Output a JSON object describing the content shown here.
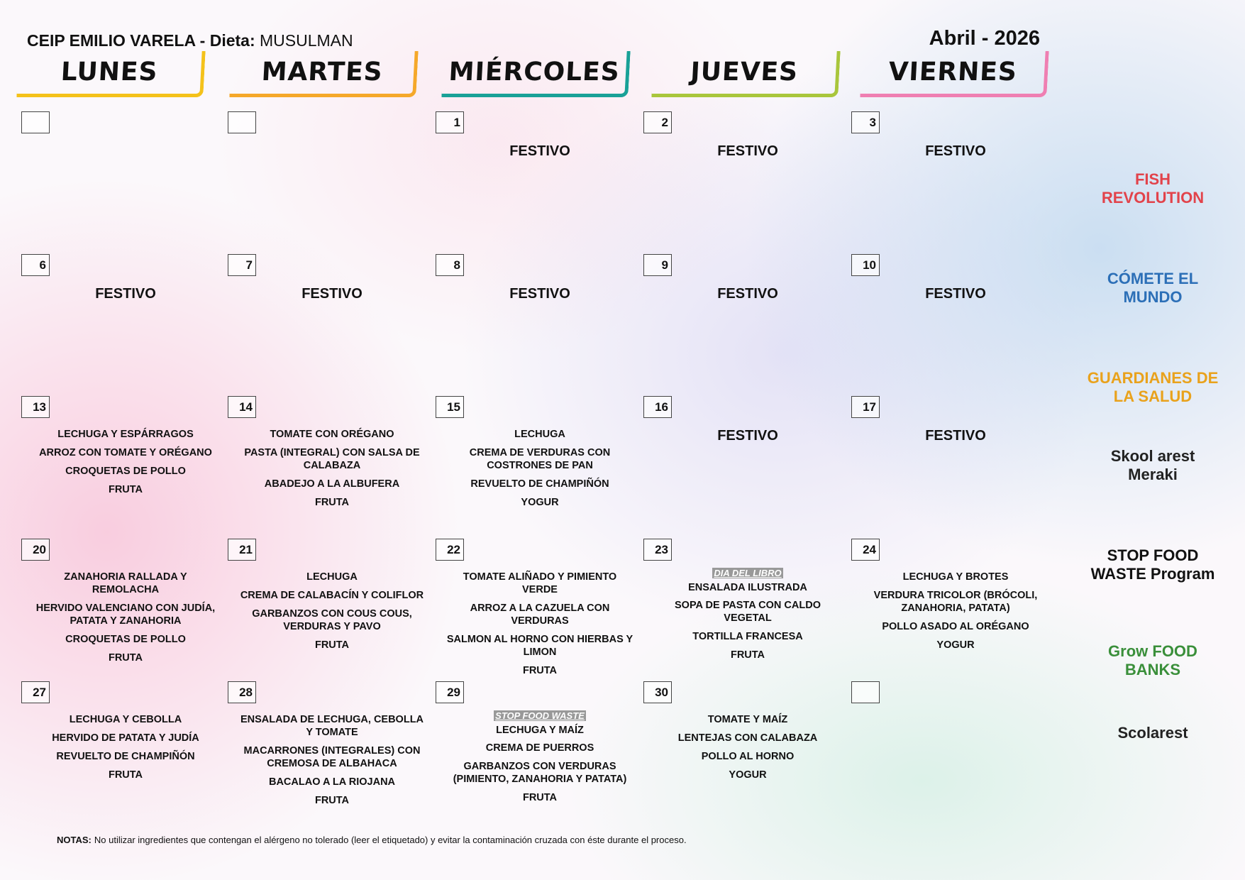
{
  "header": {
    "school": "CEIP EMILIO VARELA",
    "diet_label": "- Dieta:",
    "diet": "MUSULMAN",
    "month": "Abril - 2026"
  },
  "days": [
    {
      "name": "LUNES",
      "color": "#f4c21a"
    },
    {
      "name": "MARTES",
      "color": "#f5a82a"
    },
    {
      "name": "MIÉRCOLES",
      "color": "#19a197"
    },
    {
      "name": "JUEVES",
      "color": "#a9c63c"
    },
    {
      "name": "VIERNES",
      "color": "#ef7fb2"
    }
  ],
  "weeks": [
    [
      {
        "day": null,
        "items": []
      },
      {
        "day": null,
        "items": []
      },
      {
        "day": "1",
        "note": "FESTIVO",
        "items": []
      },
      {
        "day": "2",
        "note": "FESTIVO",
        "items": []
      },
      {
        "day": "3",
        "note": "FESTIVO",
        "items": []
      }
    ],
    [
      {
        "day": "6",
        "note": "FESTIVO",
        "items": []
      },
      {
        "day": "7",
        "note": "FESTIVO",
        "items": []
      },
      {
        "day": "8",
        "note": "FESTIVO",
        "items": []
      },
      {
        "day": "9",
        "note": "FESTIVO",
        "items": []
      },
      {
        "day": "10",
        "note": "FESTIVO",
        "items": []
      }
    ],
    [
      {
        "day": "13",
        "items": [
          "LECHUGA Y ESPÁRRAGOS",
          "ARROZ CON TOMATE Y ORÉGANO",
          "CROQUETAS DE POLLO",
          "FRUTA"
        ]
      },
      {
        "day": "14",
        "items": [
          "TOMATE CON ORÉGANO",
          "PASTA (INTEGRAL) CON SALSA DE CALABAZA",
          "ABADEJO A LA ALBUFERA",
          "FRUTA"
        ]
      },
      {
        "day": "15",
        "items": [
          "LECHUGA",
          "CREMA DE VERDURAS CON COSTRONES DE PAN",
          "REVUELTO DE CHAMPIÑÓN",
          "YOGUR"
        ]
      },
      {
        "day": "16",
        "note": "FESTIVO",
        "items": []
      },
      {
        "day": "17",
        "note": "FESTIVO",
        "items": []
      }
    ],
    [
      {
        "day": "20",
        "items": [
          "ZANAHORIA RALLADA Y REMOLACHA",
          "HERVIDO VALENCIANO CON JUDÍA, PATATA Y ZANAHORIA",
          "CROQUETAS DE POLLO",
          "FRUTA"
        ]
      },
      {
        "day": "21",
        "items": [
          "LECHUGA",
          "CREMA DE CALABACÍN Y COLIFLOR",
          "GARBANZOS CON COUS COUS, VERDURAS Y PAVO",
          "FRUTA"
        ]
      },
      {
        "day": "22",
        "items": [
          "TOMATE ALIÑADO Y PIMIENTO VERDE",
          "ARROZ A LA CAZUELA CON VERDURAS",
          "SALMON AL HORNO CON HIERBAS Y LIMON",
          "FRUTA"
        ]
      },
      {
        "day": "23",
        "tag": "DIA DEL LIBRO",
        "items": [
          "ENSALADA ILUSTRADA",
          "SOPA DE PASTA CON CALDO VEGETAL",
          "TORTILLA FRANCESA",
          "FRUTA"
        ]
      },
      {
        "day": "24",
        "items": [
          "LECHUGA Y BROTES",
          "VERDURA TRICOLOR (BRÓCOLI, ZANAHORIA, PATATA)",
          "POLLO ASADO AL ORÉGANO",
          "YOGUR"
        ]
      }
    ],
    [
      {
        "day": "27",
        "items": [
          "LECHUGA Y CEBOLLA",
          "HERVIDO DE PATATA Y JUDÍA",
          "REVUELTO DE CHAMPIÑÓN",
          "FRUTA"
        ]
      },
      {
        "day": "28",
        "items": [
          "ENSALADA DE LECHUGA, CEBOLLA Y TOMATE",
          "MACARRONES (INTEGRALES) CON CREMOSA DE ALBAHACA",
          "BACALAO A LA RIOJANA",
          "FRUTA"
        ]
      },
      {
        "day": "29",
        "tag": "STOP FOOD WASTE",
        "items": [
          "LECHUGA Y MAÍZ",
          "CREMA DE PUERROS",
          "GARBANZOS CON VERDURAS (PIMIENTO, ZANAHORIA Y PATATA)",
          "FRUTA"
        ]
      },
      {
        "day": "30",
        "items": [
          "TOMATE Y MAÍZ",
          "LENTEJAS CON CALABAZA",
          "POLLO AL HORNO",
          "YOGUR"
        ]
      },
      {
        "day": null,
        "items": []
      }
    ]
  ],
  "logos": [
    {
      "text": "FISH REVOLUTION",
      "color": "#e2434b"
    },
    {
      "text": "CÓMETE EL MUNDO",
      "color": "#2c6fb7"
    },
    {
      "text": "GUARDIANES DE LA SALUD",
      "color": "#e9a21c"
    },
    {
      "text": "Skool arest Meraki",
      "color": "#222"
    },
    {
      "text": "STOP FOOD WASTE Program",
      "color": "#111"
    },
    {
      "text": "Grow FOOD BANKS",
      "color": "#3a8f3a"
    },
    {
      "text": "Scolarest",
      "color": "#222"
    }
  ],
  "notes": {
    "label": "NOTAS:",
    "text": "No utilizar ingredientes que contengan el alérgeno no tolerado (leer el etiquetado) y evitar la contaminación cruzada con éste durante el proceso."
  }
}
